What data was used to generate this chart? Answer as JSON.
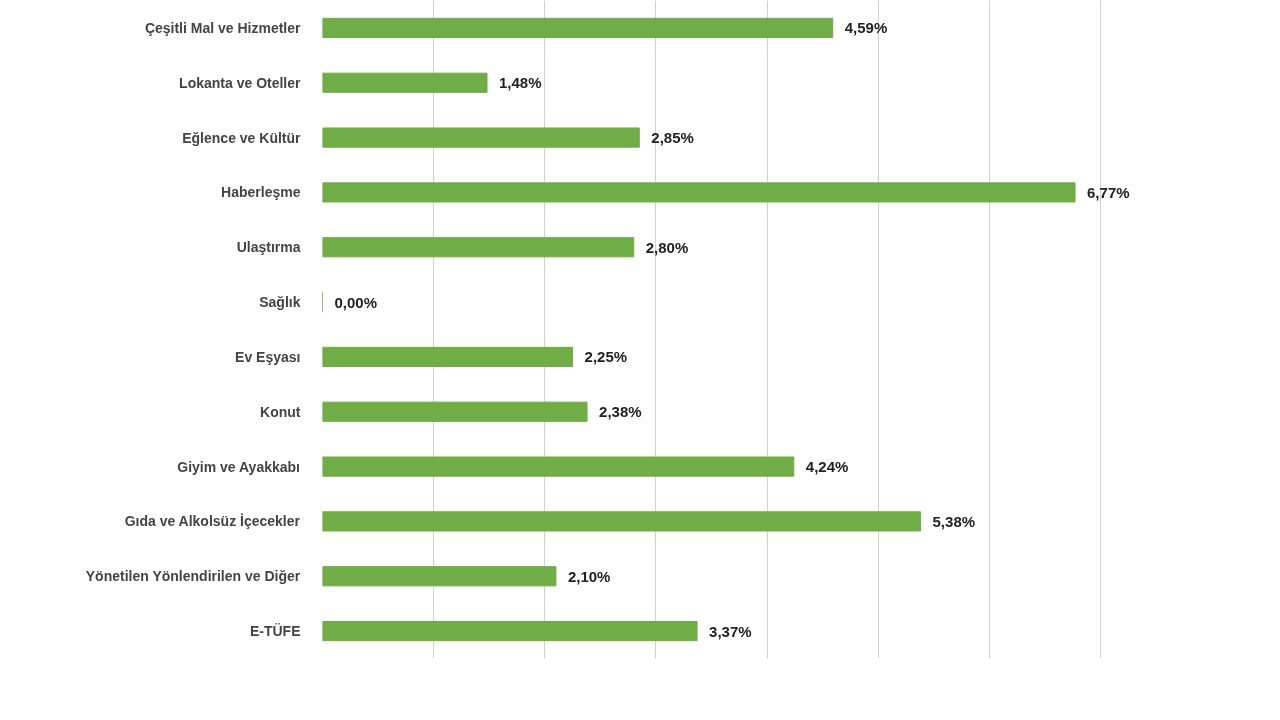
{
  "chart_data": {
    "type": "bar",
    "orientation": "horizontal",
    "categories": [
      "Çeşitli Mal ve Hizmetler",
      "Lokanta ve Oteller",
      "Eğlence ve Kültür",
      "Haberleşme",
      "Ulaştırma",
      "Sağlık",
      "Ev Eşyası",
      "Konut",
      "Giyim ve Ayakkabı",
      "Gıda ve Alkolsüz İçecekler",
      "Yönetilen Yönlendirilen ve Diğer",
      "E-TÜFE"
    ],
    "values": [
      4.59,
      1.48,
      2.85,
      6.77,
      2.8,
      0.0,
      2.25,
      2.38,
      4.24,
      5.38,
      2.1,
      3.37
    ],
    "value_labels": [
      "4,59%",
      "1,48%",
      "2,85%",
      "6,77%",
      "2,80%",
      "0,00%",
      "2,25%",
      "2,38%",
      "4,24%",
      "5,38%",
      "2,10%",
      "3,37%"
    ],
    "color": "#70ad47",
    "grid": "x"
  }
}
